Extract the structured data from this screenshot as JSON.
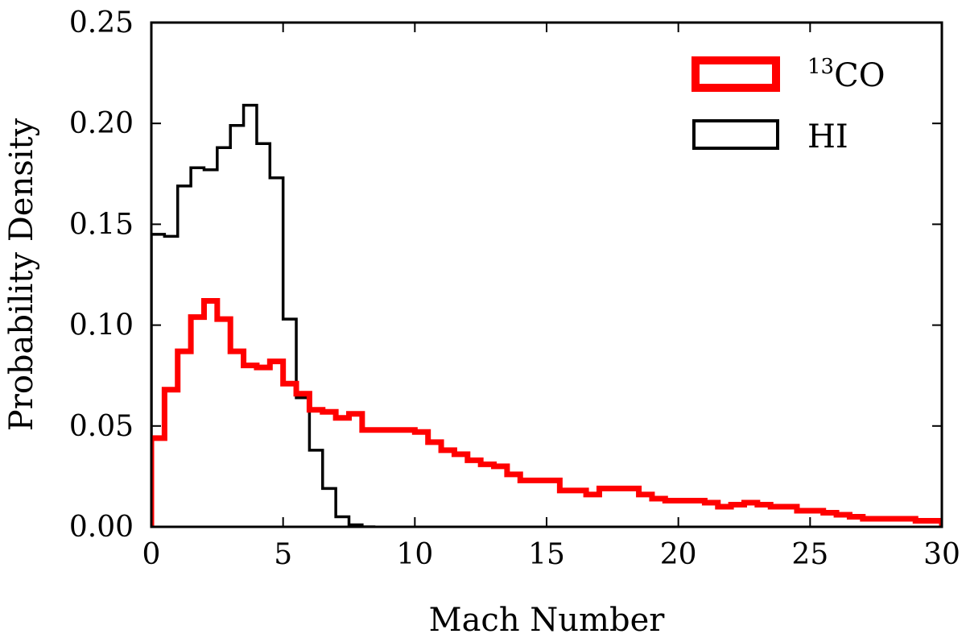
{
  "chart_data": {
    "type": "step-histogram",
    "xlabel": "Mach Number",
    "ylabel": "Probability Density",
    "xlim": [
      0,
      30
    ],
    "ylim": [
      0,
      0.25
    ],
    "xticks": [
      0,
      5,
      10,
      15,
      20,
      25,
      30
    ],
    "xtick_labels": [
      "0",
      "5",
      "10",
      "15",
      "20",
      "25",
      "30"
    ],
    "yticks": [
      0,
      0.05,
      0.1,
      0.15,
      0.2,
      0.25
    ],
    "ytick_labels": [
      "0.00",
      "0.05",
      "0.10",
      "0.15",
      "0.20",
      "0.25"
    ],
    "grid": false,
    "legend_position": "top-right",
    "series": [
      {
        "name": "13CO",
        "legend_sup": "13",
        "legend_main": "CO",
        "color": "#ff0000",
        "bin_width": 0.5,
        "bin_start": 0,
        "values": [
          0.044,
          0.068,
          0.087,
          0.104,
          0.112,
          0.103,
          0.087,
          0.08,
          0.079,
          0.082,
          0.071,
          0.066,
          0.058,
          0.057,
          0.054,
          0.056,
          0.048,
          0.048,
          0.048,
          0.048,
          0.047,
          0.042,
          0.038,
          0.036,
          0.033,
          0.031,
          0.03,
          0.026,
          0.023,
          0.023,
          0.023,
          0.018,
          0.018,
          0.016,
          0.019,
          0.019,
          0.019,
          0.016,
          0.014,
          0.013,
          0.013,
          0.013,
          0.012,
          0.01,
          0.011,
          0.012,
          0.011,
          0.01,
          0.01,
          0.008,
          0.008,
          0.007,
          0.006,
          0.005,
          0.004,
          0.004,
          0.004,
          0.004,
          0.003,
          0.003
        ]
      },
      {
        "name": "HI",
        "color": "#000000",
        "bin_width": 0.5,
        "bin_start": 0,
        "values": [
          0.145,
          0.144,
          0.169,
          0.178,
          0.177,
          0.188,
          0.199,
          0.209,
          0.19,
          0.173,
          0.103,
          0.064,
          0.038,
          0.019,
          0.005,
          0.001,
          0.0
        ]
      }
    ]
  }
}
